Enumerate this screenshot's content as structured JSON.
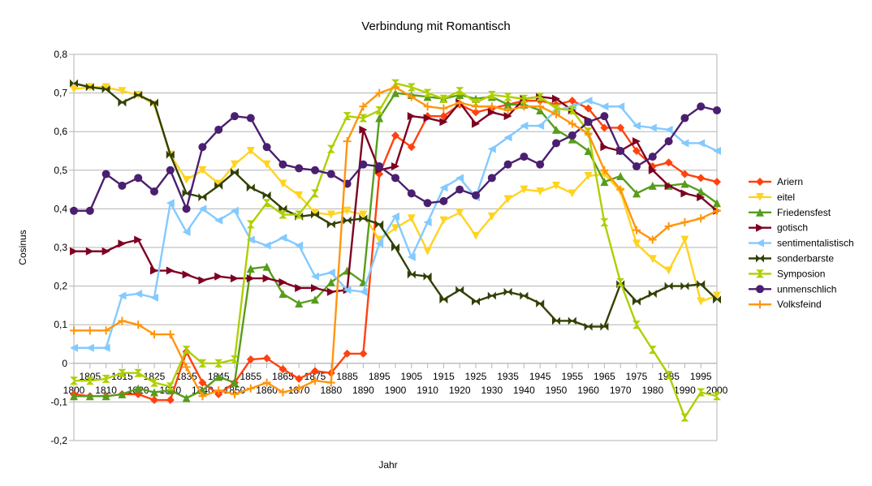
{
  "chart_data": {
    "type": "line",
    "title": "Verbindung mit Romantisch",
    "xlabel": "Jahr",
    "ylabel": "Cosinus",
    "ylim": [
      -0.2,
      0.8
    ],
    "yticks": [
      "-0,2",
      "-0,1",
      "0",
      "0,1",
      "0,2",
      "0,3",
      "0,4",
      "0,5",
      "0,6",
      "0,7",
      "0,8"
    ],
    "x": [
      1800,
      1805,
      1810,
      1815,
      1820,
      1825,
      1830,
      1835,
      1840,
      1845,
      1850,
      1855,
      1860,
      1865,
      1870,
      1875,
      1880,
      1885,
      1890,
      1895,
      1900,
      1905,
      1910,
      1915,
      1920,
      1925,
      1930,
      1935,
      1940,
      1945,
      1950,
      1955,
      1960,
      1965,
      1970,
      1975,
      1980,
      1985,
      1990,
      1995,
      2000
    ],
    "xticks_row1": [
      "1805",
      "1815",
      "1825",
      "1835",
      "1845",
      "1855",
      "1865",
      "1875",
      "1885",
      "1895",
      "1905",
      "1915",
      "1925",
      "1935",
      "1945",
      "1955",
      "1965",
      "1975",
      "1985",
      "1995"
    ],
    "xticks_row2": [
      "1800",
      "1810",
      "1820",
      "1830",
      "1840",
      "1850",
      "1860",
      "1870",
      "1880",
      "1890",
      "1900",
      "1910",
      "1920",
      "1930",
      "1940",
      "1950",
      "1960",
      "1970",
      "1980",
      "1990",
      "2000"
    ],
    "grid": "horizontal",
    "legend_position": "right",
    "series": [
      {
        "name": "Ariern",
        "color": "#ff420e",
        "marker": "diamond",
        "values": [
          -0.08,
          -0.085,
          -0.085,
          -0.08,
          -0.08,
          -0.095,
          -0.095,
          0.03,
          -0.05,
          -0.08,
          -0.05,
          0.01,
          0.013,
          -0.015,
          -0.04,
          -0.02,
          -0.025,
          0.025,
          0.025,
          0.49,
          0.59,
          0.56,
          0.64,
          0.64,
          0.67,
          0.65,
          0.66,
          0.67,
          0.68,
          0.68,
          0.67,
          0.68,
          0.66,
          0.61,
          0.61,
          0.55,
          0.51,
          0.52,
          0.49,
          0.48,
          0.47
        ]
      },
      {
        "name": "eitel",
        "color": "#ffd320",
        "marker": "triangle-down",
        "values": [
          0.71,
          0.715,
          0.715,
          0.705,
          0.695,
          0.67,
          0.54,
          0.475,
          0.5,
          0.465,
          0.515,
          0.55,
          0.515,
          0.465,
          0.435,
          0.39,
          0.385,
          0.395,
          0.385,
          0.32,
          0.35,
          0.375,
          0.29,
          0.37,
          0.39,
          0.33,
          0.38,
          0.425,
          0.45,
          0.445,
          0.46,
          0.44,
          0.485,
          0.49,
          0.445,
          0.31,
          0.27,
          0.24,
          0.32,
          0.16,
          0.175
        ]
      },
      {
        "name": "Friedensfest",
        "color": "#579d1c",
        "marker": "triangle-up",
        "values": [
          -0.085,
          -0.085,
          -0.085,
          -0.08,
          -0.065,
          -0.075,
          -0.07,
          -0.09,
          -0.07,
          -0.035,
          -0.05,
          0.245,
          0.25,
          0.18,
          0.155,
          0.165,
          0.21,
          0.24,
          0.21,
          0.635,
          0.7,
          0.695,
          0.69,
          0.685,
          0.695,
          0.685,
          0.69,
          0.67,
          0.67,
          0.655,
          0.605,
          0.58,
          0.55,
          0.47,
          0.485,
          0.44,
          0.46,
          0.46,
          0.465,
          0.445,
          0.415
        ]
      },
      {
        "name": "gotisch",
        "color": "#7e0021",
        "marker": "triangle-right",
        "values": [
          0.29,
          0.29,
          0.29,
          0.31,
          0.32,
          0.24,
          0.24,
          0.23,
          0.215,
          0.225,
          0.22,
          0.22,
          0.22,
          0.21,
          0.195,
          0.195,
          0.185,
          0.19,
          0.605,
          0.5,
          0.51,
          0.64,
          0.635,
          0.625,
          0.675,
          0.62,
          0.65,
          0.64,
          0.685,
          0.69,
          0.685,
          0.655,
          0.63,
          0.56,
          0.55,
          0.575,
          0.5,
          0.46,
          0.44,
          0.43,
          0.395
        ]
      },
      {
        "name": "sentimentalistisch",
        "color": "#83caff",
        "marker": "triangle-left",
        "values": [
          0.04,
          0.04,
          0.04,
          0.175,
          0.18,
          0.17,
          0.415,
          0.34,
          0.4,
          0.37,
          0.395,
          0.32,
          0.305,
          0.325,
          0.305,
          0.225,
          0.235,
          0.19,
          0.185,
          0.31,
          0.38,
          0.275,
          0.365,
          0.455,
          0.48,
          0.43,
          0.555,
          0.585,
          0.615,
          0.615,
          0.655,
          0.665,
          0.68,
          0.665,
          0.665,
          0.615,
          0.61,
          0.605,
          0.57,
          0.57,
          0.55
        ]
      },
      {
        "name": "sonderbarste",
        "color": "#314004",
        "marker": "bowtie",
        "values": [
          0.725,
          0.715,
          0.71,
          0.675,
          0.695,
          0.675,
          0.54,
          0.44,
          0.43,
          0.46,
          0.495,
          0.455,
          0.435,
          0.4,
          0.38,
          0.385,
          0.36,
          0.37,
          0.375,
          0.36,
          0.3,
          0.23,
          0.225,
          0.165,
          0.19,
          0.16,
          0.175,
          0.185,
          0.175,
          0.155,
          0.11,
          0.11,
          0.095,
          0.095,
          0.205,
          0.16,
          0.18,
          0.2,
          0.2,
          0.205,
          0.165
        ]
      },
      {
        "name": "Symposion",
        "color": "#aecf00",
        "marker": "hourglass",
        "values": [
          -0.045,
          -0.045,
          -0.04,
          -0.025,
          -0.025,
          -0.05,
          -0.06,
          0.035,
          0,
          0,
          0.01,
          0.36,
          0.415,
          0.385,
          0.385,
          0.44,
          0.555,
          0.64,
          0.635,
          0.655,
          0.725,
          0.715,
          0.7,
          0.685,
          0.705,
          0.675,
          0.695,
          0.69,
          0.685,
          0.69,
          0.66,
          0.655,
          0.6,
          0.365,
          0.21,
          0.1,
          0.035,
          -0.03,
          -0.14,
          -0.075,
          -0.085
        ]
      },
      {
        "name": "unmenschlich",
        "color": "#4b1f6f",
        "marker": "circle",
        "values": [
          0.395,
          0.395,
          0.49,
          0.46,
          0.48,
          0.445,
          0.5,
          0.4,
          0.56,
          0.605,
          0.64,
          0.635,
          0.56,
          0.515,
          0.505,
          0.5,
          0.49,
          0.465,
          0.515,
          0.51,
          0.48,
          0.44,
          0.415,
          0.42,
          0.45,
          0.435,
          0.48,
          0.515,
          0.535,
          0.515,
          0.57,
          0.59,
          0.625,
          0.64,
          0.55,
          0.51,
          0.535,
          0.575,
          0.635,
          0.665,
          0.655
        ]
      },
      {
        "name": "Volksfeind",
        "color": "#ff950e",
        "marker": "plus",
        "values": [
          0.085,
          0.085,
          0.085,
          0.11,
          0.1,
          0.075,
          0.075,
          -0.01,
          -0.085,
          -0.07,
          -0.08,
          -0.065,
          -0.05,
          -0.075,
          -0.065,
          -0.045,
          -0.05,
          0.575,
          0.665,
          0.7,
          0.715,
          0.69,
          0.665,
          0.66,
          0.675,
          0.665,
          0.665,
          0.655,
          0.665,
          0.665,
          0.645,
          0.62,
          0.595,
          0.5,
          0.45,
          0.345,
          0.32,
          0.355,
          0.365,
          0.375,
          0.395
        ]
      }
    ]
  }
}
